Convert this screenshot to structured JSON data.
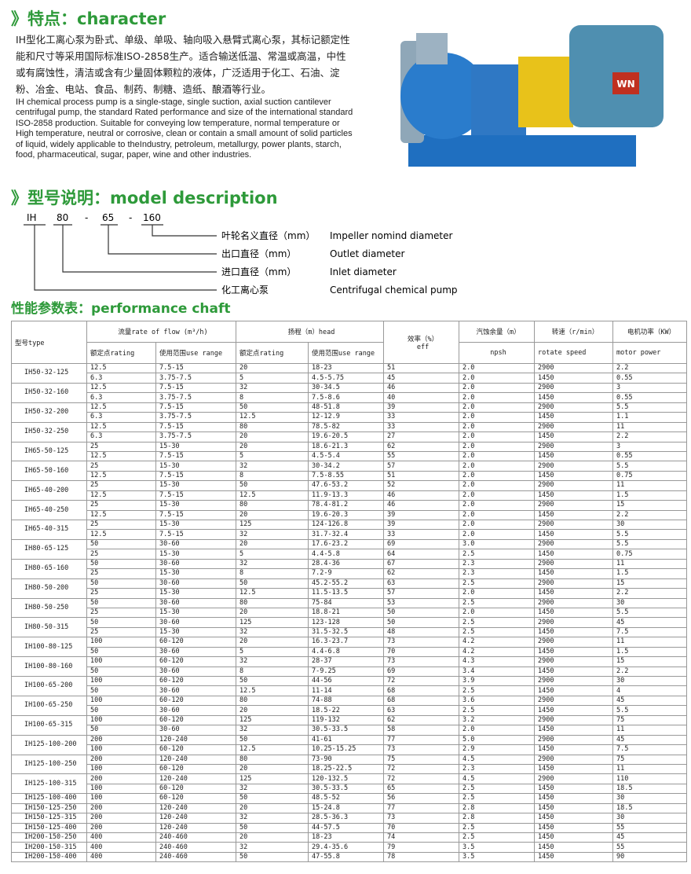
{
  "section1": {
    "heading": "》特点：character",
    "text_cn": "IH型化工离心泵为卧式、单级、单吸、轴向吸入悬臂式离心泵，其标记额定性能和尺寸等采用国际标准ISO-2858生产。适合输送低温、常温或高温，中性或有腐蚀性，清洁或含有少量固体颗粒的液体，广泛适用于化工、石油、淀粉、冶金、电站、食品、制药、制糖、造纸、酿酒等行业。",
    "text_en": "IH chemical process pump is a single-stage, single suction, axial suction cantilever centrifugal pump, the standard Rated performance and size of the international standard ISO-2858 production. Suitable for conveying low temperature, normal temperature or High temperature, neutral or corrosive, clean or contain a small amount of solid particles of liquid, widely applicable to theIndustry, petroleum, metallurgy, power plants, starch, food, pharmaceutical, sugar, paper, wine and other industries.",
    "motor_badge": "WN"
  },
  "section2": {
    "heading": "》型号说明：model description",
    "code": [
      "IH",
      "80",
      "-",
      "65",
      "-",
      "160"
    ],
    "items": [
      {
        "cn": "叶轮名义直径（mm）",
        "en": "Impeller nomind diameter"
      },
      {
        "cn": "出口直径（mm）",
        "en": "Outlet diameter"
      },
      {
        "cn": "进口直径（mm）",
        "en": "Inlet diameter"
      },
      {
        "cn": "化工离心泵",
        "en": "Centrifugal chemical pump"
      }
    ]
  },
  "section3": {
    "heading": "性能参数表：performance chaft"
  },
  "table": {
    "header": {
      "type": "型号type",
      "flow": "流量rate of flow (m³/h)",
      "head": "扬程（m）head",
      "rating": "额定点rating",
      "range": "使用范围use range",
      "rating2": "额定点rating",
      "range2": "使用范围use range",
      "eff_cn": "效率（%）",
      "eff_en": "eff",
      "npsh_cn": "汽蚀余量（m）",
      "npsh_en": "npsh",
      "speed_cn": "转速（r/min）",
      "speed_en": "rotate speed",
      "power_cn": "电机功率（KW）",
      "power_en": "motor power"
    },
    "rows": [
      {
        "model": "IH50-32-125",
        "data": [
          [
            "12.5",
            "7.5-15",
            "20",
            "18-23",
            "51",
            "2.0",
            "2900",
            "2.2"
          ],
          [
            "6.3",
            "3.75-7.5",
            "5",
            "4.5-5.75",
            "45",
            "2.0",
            "1450",
            "0.55"
          ]
        ]
      },
      {
        "model": "IH50-32-160",
        "data": [
          [
            "12.5",
            "7.5-15",
            "32",
            "30-34.5",
            "46",
            "2.0",
            "2900",
            "3"
          ],
          [
            "6.3",
            "3.75-7.5",
            "8",
            "7.5-8.6",
            "40",
            "2.0",
            "1450",
            "0.55"
          ]
        ]
      },
      {
        "model": "IH50-32-200",
        "data": [
          [
            "12.5",
            "7.5-15",
            "50",
            "48-51.8",
            "39",
            "2.0",
            "2900",
            "5.5"
          ],
          [
            "6.3",
            "3.75-7.5",
            "12.5",
            "12-12.9",
            "33",
            "2.0",
            "1450",
            "1.1"
          ]
        ]
      },
      {
        "model": "IH50-32-250",
        "data": [
          [
            "12.5",
            "7.5-15",
            "80",
            "78.5-82",
            "33",
            "2.0",
            "2900",
            "11"
          ],
          [
            "6.3",
            "3.75-7.5",
            "20",
            "19.6-20.5",
            "27",
            "2.0",
            "1450",
            "2.2"
          ]
        ]
      },
      {
        "model": "IH65-50-125",
        "data": [
          [
            "25",
            "15-30",
            "20",
            "18.6-21.3",
            "62",
            "2.0",
            "2900",
            "3"
          ],
          [
            "12.5",
            "7.5-15",
            "5",
            "4.5-5.4",
            "55",
            "2.0",
            "1450",
            "0.55"
          ]
        ]
      },
      {
        "model": "IH65-50-160",
        "data": [
          [
            "25",
            "15-30",
            "32",
            "30-34.2",
            "57",
            "2.0",
            "2900",
            "5.5"
          ],
          [
            "12.5",
            "7.5-15",
            "8",
            "7.5-8.55",
            "51",
            "2.0",
            "1450",
            "0.75"
          ]
        ]
      },
      {
        "model": "IH65-40-200",
        "data": [
          [
            "25",
            "15-30",
            "50",
            "47.6-53.2",
            "52",
            "2.0",
            "2900",
            "11"
          ],
          [
            "12.5",
            "7.5-15",
            "12.5",
            "11.9-13.3",
            "46",
            "2.0",
            "1450",
            "1.5"
          ]
        ]
      },
      {
        "model": "IH65-40-250",
        "data": [
          [
            "25",
            "15-30",
            "80",
            "78.4-81.2",
            "46",
            "2.0",
            "2900",
            "15"
          ],
          [
            "12.5",
            "7.5-15",
            "20",
            "19.6-20.3",
            "39",
            "2.0",
            "1450",
            "2.2"
          ]
        ]
      },
      {
        "model": "IH65-40-315",
        "data": [
          [
            "25",
            "15-30",
            "125",
            "124-126.8",
            "39",
            "2.0",
            "2900",
            "30"
          ],
          [
            "12.5",
            "7.5-15",
            "32",
            "31.7-32.4",
            "33",
            "2.0",
            "1450",
            "5.5"
          ]
        ]
      },
      {
        "model": "IH80-65-125",
        "data": [
          [
            "50",
            "30-60",
            "20",
            "17.6-23.2",
            "69",
            "3.0",
            "2900",
            "5.5"
          ],
          [
            "25",
            "15-30",
            "5",
            "4.4-5.8",
            "64",
            "2.5",
            "1450",
            "0.75"
          ]
        ]
      },
      {
        "model": "IH80-65-160",
        "data": [
          [
            "50",
            "30-60",
            "32",
            "28.4-36",
            "67",
            "2.3",
            "2900",
            "11"
          ],
          [
            "25",
            "15-30",
            "8",
            "7.2-9",
            "62",
            "2.3",
            "1450",
            "1.5"
          ]
        ]
      },
      {
        "model": "IH80-50-200",
        "data": [
          [
            "50",
            "30-60",
            "50",
            "45.2-55.2",
            "63",
            "2.5",
            "2900",
            "15"
          ],
          [
            "25",
            "15-30",
            "12.5",
            "11.5-13.5",
            "57",
            "2.0",
            "1450",
            "2.2"
          ]
        ]
      },
      {
        "model": "IH80-50-250",
        "data": [
          [
            "50",
            "30-60",
            "80",
            "75-84",
            "53",
            "2.5",
            "2900",
            "30"
          ],
          [
            "25",
            "15-30",
            "20",
            "18.8-21",
            "50",
            "2.0",
            "1450",
            "5.5"
          ]
        ]
      },
      {
        "model": "IH80-50-315",
        "data": [
          [
            "50",
            "30-60",
            "125",
            "123-128",
            "50",
            "2.5",
            "2900",
            "45"
          ],
          [
            "25",
            "15-30",
            "32",
            "31.5-32.5",
            "48",
            "2.5",
            "1450",
            "7.5"
          ]
        ]
      },
      {
        "model": "IH100-80-125",
        "data": [
          [
            "100",
            "60-120",
            "20",
            "16.3-23.7",
            "73",
            "4.2",
            "2900",
            "11"
          ],
          [
            "50",
            "30-60",
            "5",
            "4.4-6.8",
            "70",
            "4.2",
            "1450",
            "1.5"
          ]
        ]
      },
      {
        "model": "IH100-80-160",
        "data": [
          [
            "100",
            "60-120",
            "32",
            "28-37",
            "73",
            "4.3",
            "2900",
            "15"
          ],
          [
            "50",
            "30-60",
            "8",
            "7-9.25",
            "69",
            "3.4",
            "1450",
            "2.2"
          ]
        ]
      },
      {
        "model": "IH100-65-200",
        "data": [
          [
            "100",
            "60-120",
            "50",
            "44-56",
            "72",
            "3.9",
            "2900",
            "30"
          ],
          [
            "50",
            "30-60",
            "12.5",
            "11-14",
            "68",
            "2.5",
            "1450",
            "4"
          ]
        ]
      },
      {
        "model": "IH100-65-250",
        "data": [
          [
            "100",
            "60-120",
            "80",
            "74-88",
            "68",
            "3.6",
            "2900",
            "45"
          ],
          [
            "50",
            "30-60",
            "20",
            "18.5-22",
            "63",
            "2.5",
            "1450",
            "5.5"
          ]
        ]
      },
      {
        "model": "IH100-65-315",
        "data": [
          [
            "100",
            "60-120",
            "125",
            "119-132",
            "62",
            "3.2",
            "2900",
            "75"
          ],
          [
            "50",
            "30-60",
            "32",
            "30.5-33.5",
            "58",
            "2.0",
            "1450",
            "11"
          ]
        ]
      },
      {
        "model": "IH125-100-200",
        "data": [
          [
            "200",
            "120-240",
            "50",
            "41-61",
            "77",
            "5.0",
            "2900",
            "45"
          ],
          [
            "100",
            "60-120",
            "12.5",
            "10.25-15.25",
            "73",
            "2.9",
            "1450",
            "7.5"
          ]
        ]
      },
      {
        "model": "IH125-100-250",
        "data": [
          [
            "200",
            "120-240",
            "80",
            "73-90",
            "75",
            "4.5",
            "2900",
            "75"
          ],
          [
            "100",
            "60-120",
            "20",
            "18.25-22.5",
            "72",
            "2.3",
            "1450",
            "11"
          ]
        ]
      },
      {
        "model": "IH125-100-315",
        "data": [
          [
            "200",
            "120-240",
            "125",
            "120-132.5",
            "72",
            "4.5",
            "2900",
            "110"
          ],
          [
            "100",
            "60-120",
            "32",
            "30.5-33.5",
            "65",
            "2.5",
            "1450",
            "18.5"
          ]
        ]
      },
      {
        "model": "IH125-100-400",
        "data": [
          [
            "100",
            "60-120",
            "50",
            "48.5-52",
            "56",
            "2.5",
            "1450",
            "30"
          ]
        ]
      },
      {
        "model": "IH150-125-250",
        "data": [
          [
            "200",
            "120-240",
            "20",
            "15-24.8",
            "77",
            "2.8",
            "1450",
            "18.5"
          ]
        ]
      },
      {
        "model": "IH150-125-315",
        "data": [
          [
            "200",
            "120-240",
            "32",
            "28.5-36.3",
            "73",
            "2.8",
            "1450",
            "30"
          ]
        ]
      },
      {
        "model": "IH150-125-400",
        "data": [
          [
            "200",
            "120-240",
            "50",
            "44-57.5",
            "70",
            "2.5",
            "1450",
            "55"
          ]
        ]
      },
      {
        "model": "IH200-150-250",
        "data": [
          [
            "400",
            "240-460",
            "20",
            "18-23",
            "74",
            "2.5",
            "1450",
            "45"
          ]
        ]
      },
      {
        "model": "IH200-150-315",
        "data": [
          [
            "400",
            "240-460",
            "32",
            "29.4-35.6",
            "79",
            "3.5",
            "1450",
            "55"
          ]
        ]
      },
      {
        "model": "IH200-150-400",
        "data": [
          [
            "400",
            "240-460",
            "50",
            "47-55.8",
            "78",
            "3.5",
            "1450",
            "90"
          ]
        ]
      }
    ]
  }
}
